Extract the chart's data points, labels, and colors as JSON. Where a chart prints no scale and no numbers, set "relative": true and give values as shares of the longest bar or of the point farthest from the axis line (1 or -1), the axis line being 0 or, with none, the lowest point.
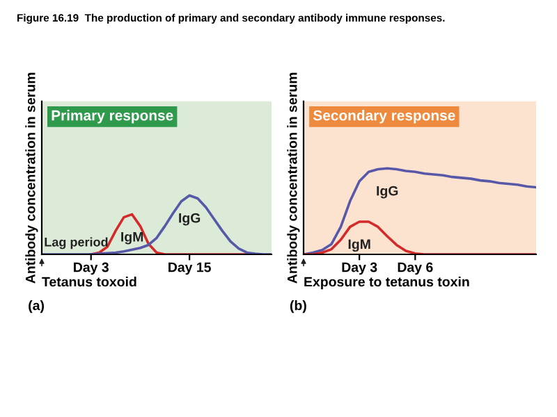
{
  "chart_data": [
    {
      "type": "line",
      "relative": true,
      "title": "Primary response",
      "ylabel": "Antibody concentration in serum",
      "xlabel": "Tetanus toxoid",
      "grid": false,
      "legend": false,
      "categories": [
        null,
        null,
        null,
        null,
        null,
        null,
        "Day 3",
        null,
        null,
        null,
        null,
        null,
        null,
        null,
        null,
        null,
        null,
        null,
        "Day 15",
        null,
        null,
        null,
        null,
        null,
        null,
        null,
        null,
        null,
        null
      ],
      "annotations": [
        "Figure 16.19  The production of primary and secondary antibody immune responses.",
        "Lag period",
        "(a)"
      ],
      "series": [
        {
          "name": "IgM",
          "color": "#d42a2a",
          "values": [
            null,
            null,
            null,
            null,
            null,
            null,
            0,
            0.03,
            0.13,
            0.4,
            0.63,
            0.68,
            0.48,
            0.18,
            0.03,
            0,
            0,
            0,
            0,
            0,
            0,
            0,
            0,
            0,
            0,
            0,
            null,
            null,
            null
          ]
        },
        {
          "name": "IgG",
          "color": "#5858a8",
          "values": [
            0,
            0,
            0,
            0,
            0,
            0,
            0,
            0.01,
            0.02,
            0.03,
            0.05,
            0.08,
            0.11,
            0.16,
            0.28,
            0.48,
            0.7,
            0.9,
            1,
            0.95,
            0.8,
            0.6,
            0.4,
            0.22,
            0.1,
            0.03,
            0.01,
            0,
            0
          ]
        }
      ]
    },
    {
      "type": "line",
      "relative": true,
      "title": "Secondary response",
      "ylabel": "Antibody concentration in serum",
      "xlabel": "Exposure to tetanus toxin",
      "grid": false,
      "legend": false,
      "categories": [
        null,
        null,
        null,
        null,
        null,
        null,
        "Day 3",
        null,
        null,
        null,
        null,
        null,
        "Day 6",
        null,
        null,
        null,
        null,
        null,
        null,
        null,
        null,
        null,
        null,
        null,
        null,
        null
      ],
      "annotations": [
        "(b)"
      ],
      "series": [
        {
          "name": "IgG",
          "color": "#5858a8",
          "values": [
            0,
            0.02,
            0.05,
            0.12,
            0.32,
            0.62,
            0.85,
            0.96,
            0.99,
            1,
            0.99,
            0.97,
            0.96,
            0.94,
            0.93,
            0.92,
            0.9,
            0.89,
            0.88,
            0.86,
            0.85,
            0.83,
            0.82,
            0.81,
            0.79,
            0.78
          ]
        },
        {
          "name": "IgM",
          "color": "#d42a2a",
          "values": [
            0,
            0,
            0.02,
            0.06,
            0.17,
            0.32,
            0.38,
            0.38,
            0.32,
            0.21,
            0.11,
            0.04,
            0.01,
            0,
            0,
            0,
            0,
            0,
            0,
            0,
            0,
            0,
            0,
            0,
            0,
            0
          ]
        }
      ]
    }
  ]
}
